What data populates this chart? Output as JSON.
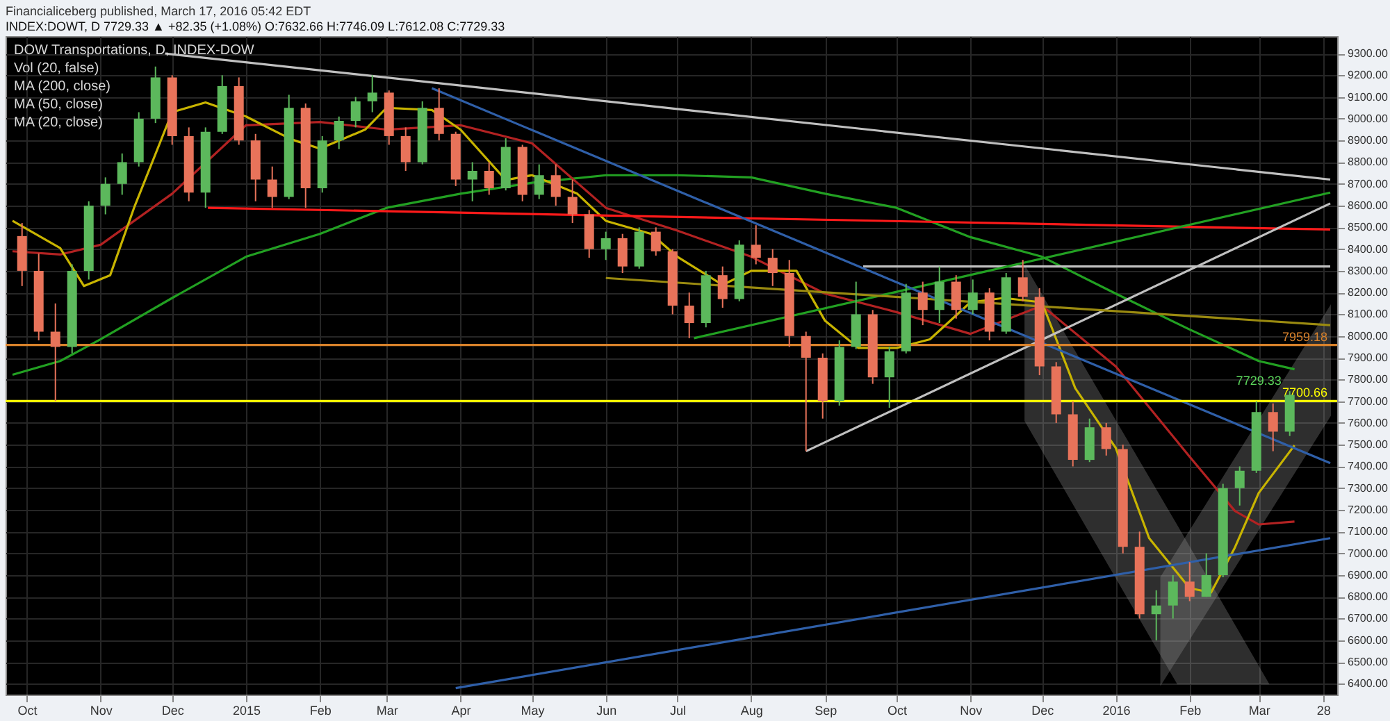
{
  "chart_data": {
    "type": "candlestick",
    "title": "Financialiceberg published, March 17, 2016 05:42 EDT",
    "subtitle": "INDEX:DOWT, D 7729.33 ▲ +82.35 (+1.08%) O:7632.66 H:7746.09 L:7612.08 C:7729.33",
    "annotations": [
      "DOW Transportations, D, INDEX-DOW",
      "Vol (20, false)",
      "MA (200, close)",
      "MA (50, close)",
      "MA (20, close)",
      {
        "text": "7729.33",
        "x": "2016-03-14",
        "y": 7729.33
      }
    ],
    "x": [
      "2014-09-29",
      "2014-10-06",
      "2014-10-13",
      "2014-10-20",
      "2014-10-27",
      "2014-11-03",
      "2014-11-10",
      "2014-11-17",
      "2014-11-24",
      "2014-12-01",
      "2014-12-08",
      "2014-12-15",
      "2014-12-22",
      "2014-12-29",
      "2015-01-05",
      "2015-01-12",
      "2015-01-19",
      "2015-01-26",
      "2015-02-02",
      "2015-02-09",
      "2015-02-16",
      "2015-02-23",
      "2015-03-02",
      "2015-03-09",
      "2015-03-16",
      "2015-03-23",
      "2015-03-30",
      "2015-04-06",
      "2015-04-13",
      "2015-04-20",
      "2015-04-27",
      "2015-05-04",
      "2015-05-11",
      "2015-05-18",
      "2015-05-25",
      "2015-06-01",
      "2015-06-08",
      "2015-06-15",
      "2015-06-22",
      "2015-06-29",
      "2015-07-06",
      "2015-07-13",
      "2015-07-20",
      "2015-07-27",
      "2015-08-03",
      "2015-08-10",
      "2015-08-17",
      "2015-08-24",
      "2015-08-31",
      "2015-09-07",
      "2015-09-14",
      "2015-09-21",
      "2015-09-28",
      "2015-10-05",
      "2015-10-12",
      "2015-10-19",
      "2015-10-26",
      "2015-11-02",
      "2015-11-09",
      "2015-11-16",
      "2015-11-23",
      "2015-11-30",
      "2015-12-07",
      "2015-12-14",
      "2015-12-21",
      "2015-12-28",
      "2016-01-04",
      "2016-01-11",
      "2016-01-18",
      "2016-01-25",
      "2016-02-01",
      "2016-02-08",
      "2016-02-15",
      "2016-02-22",
      "2016-02-29",
      "2016-03-07",
      "2016-03-14"
    ],
    "ohlc": [
      [
        8460,
        8520,
        8230,
        8300
      ],
      [
        8300,
        8380,
        7980,
        8020
      ],
      [
        8020,
        8150,
        7700,
        7950
      ],
      [
        7950,
        8330,
        7920,
        8300
      ],
      [
        8300,
        8620,
        8260,
        8600
      ],
      [
        8600,
        8730,
        8560,
        8700
      ],
      [
        8700,
        8840,
        8650,
        8800
      ],
      [
        8800,
        9030,
        8780,
        9000
      ],
      [
        9000,
        9240,
        8980,
        9190
      ],
      [
        9190,
        9200,
        8880,
        8920
      ],
      [
        8920,
        8960,
        8620,
        8660
      ],
      [
        8660,
        8960,
        8590,
        8940
      ],
      [
        8940,
        9200,
        8930,
        9150
      ],
      [
        9150,
        9190,
        8880,
        8900
      ],
      [
        8900,
        8930,
        8620,
        8720
      ],
      [
        8720,
        8780,
        8590,
        8640
      ],
      [
        8640,
        9110,
        8630,
        9050
      ],
      [
        9050,
        9070,
        8590,
        8680
      ],
      [
        8680,
        8920,
        8660,
        8900
      ],
      [
        8900,
        9010,
        8860,
        8990
      ],
      [
        8990,
        9100,
        8960,
        9080
      ],
      [
        9080,
        9200,
        9030,
        9120
      ],
      [
        9120,
        9130,
        8880,
        8920
      ],
      [
        8920,
        8960,
        8760,
        8800
      ],
      [
        8800,
        9080,
        8790,
        9050
      ],
      [
        9050,
        9140,
        8900,
        8930
      ],
      [
        8930,
        8940,
        8690,
        8720
      ],
      [
        8720,
        8800,
        8620,
        8760
      ],
      [
        8760,
        8800,
        8650,
        8680
      ],
      [
        8680,
        8910,
        8670,
        8870
      ],
      [
        8870,
        8880,
        8620,
        8650
      ],
      [
        8650,
        8790,
        8630,
        8740
      ],
      [
        8740,
        8790,
        8600,
        8640
      ],
      [
        8640,
        8720,
        8520,
        8560
      ],
      [
        8560,
        8580,
        8360,
        8400
      ],
      [
        8400,
        8480,
        8350,
        8450
      ],
      [
        8450,
        8470,
        8290,
        8320
      ],
      [
        8320,
        8500,
        8310,
        8480
      ],
      [
        8480,
        8500,
        8370,
        8390
      ],
      [
        8390,
        8400,
        8100,
        8140
      ],
      [
        8140,
        8200,
        7990,
        8060
      ],
      [
        8060,
        8300,
        8040,
        8280
      ],
      [
        8280,
        8320,
        8130,
        8170
      ],
      [
        8170,
        8440,
        8160,
        8420
      ],
      [
        8420,
        8510,
        8330,
        8360
      ],
      [
        8360,
        8400,
        8230,
        8290
      ],
      [
        8290,
        8350,
        7950,
        8000
      ],
      [
        8000,
        8020,
        7470,
        7900
      ],
      [
        7900,
        7920,
        7620,
        7700
      ],
      [
        7700,
        7980,
        7680,
        7950
      ],
      [
        7950,
        8250,
        7940,
        8100
      ],
      [
        8100,
        8120,
        7780,
        7810
      ],
      [
        7810,
        7950,
        7670,
        7930
      ],
      [
        7930,
        8240,
        7920,
        8200
      ],
      [
        8200,
        8250,
        8050,
        8120
      ],
      [
        8120,
        8320,
        8060,
        8250
      ],
      [
        8250,
        8280,
        8080,
        8120
      ],
      [
        8120,
        8260,
        8100,
        8200
      ],
      [
        8200,
        8220,
        7980,
        8020
      ],
      [
        8020,
        8290,
        8010,
        8270
      ],
      [
        8270,
        8350,
        8160,
        8180
      ],
      [
        8180,
        8220,
        7820,
        7860
      ],
      [
        7860,
        7880,
        7600,
        7640
      ],
      [
        7640,
        7700,
        7400,
        7430
      ],
      [
        7430,
        7620,
        7420,
        7580
      ],
      [
        7580,
        7600,
        7450,
        7480
      ],
      [
        7480,
        7500,
        7000,
        7030
      ],
      [
        7030,
        7100,
        6700,
        6720
      ],
      [
        6720,
        6830,
        6600,
        6760
      ],
      [
        6760,
        6900,
        6700,
        6870
      ],
      [
        6870,
        6960,
        6780,
        6800
      ],
      [
        6800,
        7000,
        6800,
        6900
      ],
      [
        6900,
        7320,
        6890,
        7300
      ],
      [
        7300,
        7400,
        7220,
        7380
      ],
      [
        7380,
        7700,
        7370,
        7650
      ],
      [
        7650,
        7690,
        7470,
        7560
      ],
      [
        7560,
        7746.09,
        7540,
        7729.33
      ]
    ],
    "colors": [
      "#e8735a",
      "#e8735a",
      "#e8735a",
      "#5cb85c",
      "#5cb85c",
      "#5cb85c",
      "#5cb85c",
      "#5cb85c",
      "#5cb85c",
      "#e8735a",
      "#e8735a",
      "#5cb85c",
      "#5cb85c",
      "#e8735a",
      "#e8735a",
      "#e8735a",
      "#5cb85c",
      "#e8735a",
      "#5cb85c",
      "#5cb85c",
      "#5cb85c",
      "#5cb85c",
      "#e8735a",
      "#e8735a",
      "#5cb85c",
      "#e8735a",
      "#e8735a",
      "#5cb85c",
      "#e8735a",
      "#5cb85c",
      "#e8735a",
      "#5cb85c",
      "#e8735a",
      "#e8735a",
      "#e8735a",
      "#5cb85c",
      "#e8735a",
      "#5cb85c",
      "#e8735a",
      "#e8735a",
      "#e8735a",
      "#5cb85c",
      "#e8735a",
      "#5cb85c",
      "#e8735a",
      "#e8735a",
      "#e8735a",
      "#e8735a",
      "#e8735a",
      "#5cb85c",
      "#5cb85c",
      "#e8735a",
      "#5cb85c",
      "#5cb85c",
      "#e8735a",
      "#5cb85c",
      "#e8735a",
      "#5cb85c",
      "#e8735a",
      "#5cb85c",
      "#e8735a",
      "#e8735a",
      "#e8735a",
      "#e8735a",
      "#5cb85c",
      "#e8735a",
      "#e8735a",
      "#e8735a",
      "#5cb85c",
      "#5cb85c",
      "#e8735a",
      "#5cb85c",
      "#5cb85c",
      "#5cb85c",
      "#5cb85c",
      "#e8735a",
      "#5cb85c"
    ],
    "series": [
      {
        "type": "line",
        "color": "#9a9a9a",
        "x": [
          "2015-11-24",
          "2016-01-27",
          "2016-03-05"
        ],
        "values": [
          null,
          null,
          null
        ],
        "upper": [
          8317,
          7120,
          6400
        ],
        "lower": [
          7610,
          6400,
          6400
        ]
      },
      {
        "type": "line",
        "color": "#9a9a9a",
        "x": [
          "2016-01-20",
          "2016-03-31"
        ],
        "values": [
          null,
          null
        ],
        "upper": [
          6890,
          8135
        ],
        "lower": [
          6400,
          7634
        ]
      },
      {
        "type": "line",
        "color": "#22a022",
        "x": [
          "2014-09-25",
          "2014-10-15",
          "2014-11-01",
          "2014-12-01",
          "2015-01-01",
          "2015-02-01",
          "2015-03-01",
          "2015-04-01",
          "2015-05-01",
          "2015-06-01",
          "2015-07-01",
          "2015-08-01",
          "2015-09-01",
          "2015-10-01",
          "2015-11-01",
          "2015-12-01",
          "2016-01-01",
          "2016-02-01",
          "2016-03-01",
          "2016-03-16"
        ],
        "values": [
          7822,
          7885,
          7985,
          8175,
          8365,
          8470,
          8590,
          8655,
          8705,
          8740,
          8740,
          8730,
          8655,
          8590,
          8455,
          8365,
          8195,
          8030,
          7885,
          7847
        ]
      },
      {
        "type": "line",
        "color": "#b22222",
        "x": [
          "2014-09-25",
          "2014-10-15",
          "2014-11-01",
          "2014-12-01",
          "2015-01-01",
          "2015-02-01",
          "2015-03-01",
          "2015-04-01",
          "2015-05-01",
          "2015-06-01",
          "2015-07-01",
          "2015-08-01",
          "2015-09-01",
          "2015-10-01",
          "2015-11-01",
          "2015-12-01",
          "2016-01-01",
          "2016-02-01",
          "2016-02-20",
          "2016-03-01",
          "2016-03-16"
        ],
        "values": [
          8390,
          8375,
          8420,
          8655,
          8970,
          8985,
          8950,
          8970,
          8887,
          8590,
          8485,
          8365,
          8195,
          8110,
          8010,
          8140,
          7860,
          7445,
          7195,
          7133,
          7146
        ]
      },
      {
        "type": "line",
        "color": "#c8b400",
        "x": [
          "2014-09-25",
          "2014-10-15",
          "2014-10-25",
          "2014-11-05",
          "2014-11-15",
          "2014-12-01",
          "2014-12-15",
          "2015-01-01",
          "2015-01-20",
          "2015-02-01",
          "2015-02-20",
          "2015-03-01",
          "2015-03-20",
          "2015-04-01",
          "2015-04-20",
          "2015-05-01",
          "2015-05-20",
          "2015-06-01",
          "2015-06-20",
          "2015-07-01",
          "2015-07-20",
          "2015-08-01",
          "2015-08-20",
          "2015-09-01",
          "2015-09-15",
          "2015-10-01",
          "2015-10-15",
          "2015-11-01",
          "2015-11-15",
          "2015-12-01",
          "2015-12-15",
          "2016-01-01",
          "2016-01-15",
          "2016-02-01",
          "2016-02-10",
          "2016-02-20",
          "2016-03-01",
          "2016-03-16"
        ],
        "values": [
          8530,
          8405,
          8230,
          8280,
          8590,
          9030,
          9075,
          9010,
          8905,
          8862,
          8950,
          9050,
          9040,
          8950,
          8718,
          8740,
          8655,
          8530,
          8470,
          8365,
          8235,
          8300,
          8300,
          8070,
          7945,
          7945,
          7985,
          8155,
          8175,
          8155,
          7760,
          7485,
          7070,
          6840,
          6820,
          7027,
          7278,
          7497
        ]
      },
      {
        "type": "line",
        "color": "#c0c0c0",
        "x": [
          "2014-11-28",
          "2016-03-31"
        ],
        "values": [
          9300,
          8720
        ]
      },
      {
        "type": "line",
        "color": "#ff1a1a",
        "x": [
          "2014-12-16",
          "2016-03-31"
        ],
        "values": [
          8590,
          8490
        ]
      },
      {
        "type": "line",
        "color": "#c0c0c0",
        "x": [
          "2015-09-17",
          "2016-03-31"
        ],
        "values": [
          8320,
          8320
        ]
      },
      {
        "type": "line",
        "color": "#c0c0c0",
        "x": [
          "2015-08-24",
          "2016-03-31"
        ],
        "values": [
          7470,
          8610
        ]
      },
      {
        "type": "line",
        "color": "#22a022",
        "x": [
          "2015-07-08",
          "2016-03-31"
        ],
        "values": [
          7990,
          8660
        ]
      },
      {
        "type": "line",
        "color": "#9a8a10",
        "x": [
          "2015-06-01",
          "2016-03-31"
        ],
        "values": [
          8267,
          8050
        ]
      },
      {
        "type": "line",
        "color": "#2f5fa8",
        "x": [
          "2015-03-20",
          "2016-03-31"
        ],
        "values": [
          9140,
          7415
        ]
      },
      {
        "type": "line",
        "color": "#2f5fa8",
        "x": [
          "2015-03-30",
          "2016-03-31"
        ],
        "values": [
          6380,
          7070
        ]
      }
    ],
    "ref_lines": [
      {
        "axis": "y",
        "value": 7959.18,
        "label": "7959.18",
        "color": "#d9822b"
      },
      {
        "axis": "y",
        "value": 7700.66,
        "label": "7700.66",
        "color": "#ffff00"
      }
    ],
    "xlim": [
      "2014-09-25",
      "2016-03-31"
    ],
    "ylim": [
      6350,
      9380
    ],
    "xticks": [
      {
        "value": "2014-10-01",
        "label": "Oct"
      },
      {
        "value": "2014-11-01",
        "label": "Nov"
      },
      {
        "value": "2014-12-01",
        "label": "Dec"
      },
      {
        "value": "2015-01-01",
        "label": "2015"
      },
      {
        "value": "2015-02-01",
        "label": "Feb"
      },
      {
        "value": "2015-03-01",
        "label": "Mar"
      },
      {
        "value": "2015-04-01",
        "label": "Apr"
      },
      {
        "value": "2015-05-01",
        "label": "May"
      },
      {
        "value": "2015-06-01",
        "label": "Jun"
      },
      {
        "value": "2015-07-01",
        "label": "Jul"
      },
      {
        "value": "2015-08-01",
        "label": "Aug"
      },
      {
        "value": "2015-09-01",
        "label": "Sep"
      },
      {
        "value": "2015-10-01",
        "label": "Oct"
      },
      {
        "value": "2015-11-01",
        "label": "Nov"
      },
      {
        "value": "2015-12-01",
        "label": "Dec"
      },
      {
        "value": "2016-01-01",
        "label": "2016"
      },
      {
        "value": "2016-02-01",
        "label": "Feb"
      },
      {
        "value": "2016-03-01",
        "label": "Mar"
      },
      {
        "value": "2016-03-28",
        "label": "28"
      }
    ],
    "yticks": [
      {
        "value": 6400,
        "label": "6400.00"
      },
      {
        "value": 6500,
        "label": "6500.00"
      },
      {
        "value": 6600,
        "label": "6600.00"
      },
      {
        "value": 6700,
        "label": "6700.00"
      },
      {
        "value": 6800,
        "label": "6800.00"
      },
      {
        "value": 6900,
        "label": "6900.00"
      },
      {
        "value": 7000,
        "label": "7000.00"
      },
      {
        "value": 7100,
        "label": "7100.00"
      },
      {
        "value": 7200,
        "label": "7200.00"
      },
      {
        "value": 7300,
        "label": "7300.00"
      },
      {
        "value": 7400,
        "label": "7400.00"
      },
      {
        "value": 7500,
        "label": "7500.00"
      },
      {
        "value": 7600,
        "label": "7600.00"
      },
      {
        "value": 7700,
        "label": "7700.00"
      },
      {
        "value": 7800,
        "label": "7800.00"
      },
      {
        "value": 7900,
        "label": "7900.00"
      },
      {
        "value": 8000,
        "label": "8000.00"
      },
      {
        "value": 8100,
        "label": "8100.00"
      },
      {
        "value": 8200,
        "label": "8200.00"
      },
      {
        "value": 8300,
        "label": "8300.00"
      },
      {
        "value": 8400,
        "label": "8400.00"
      },
      {
        "value": 8500,
        "label": "8500.00"
      },
      {
        "value": 8600,
        "label": "8600.00"
      },
      {
        "value": 8700,
        "label": "8700.00"
      },
      {
        "value": 8800,
        "label": "8800.00"
      },
      {
        "value": 8900,
        "label": "8900.00"
      },
      {
        "value": 9000,
        "label": "9000.00"
      },
      {
        "value": 9100,
        "label": "9100.00"
      },
      {
        "value": 9200,
        "label": "9200.00"
      },
      {
        "value": 9300,
        "label": "9300.00"
      }
    ],
    "grid": true
  }
}
